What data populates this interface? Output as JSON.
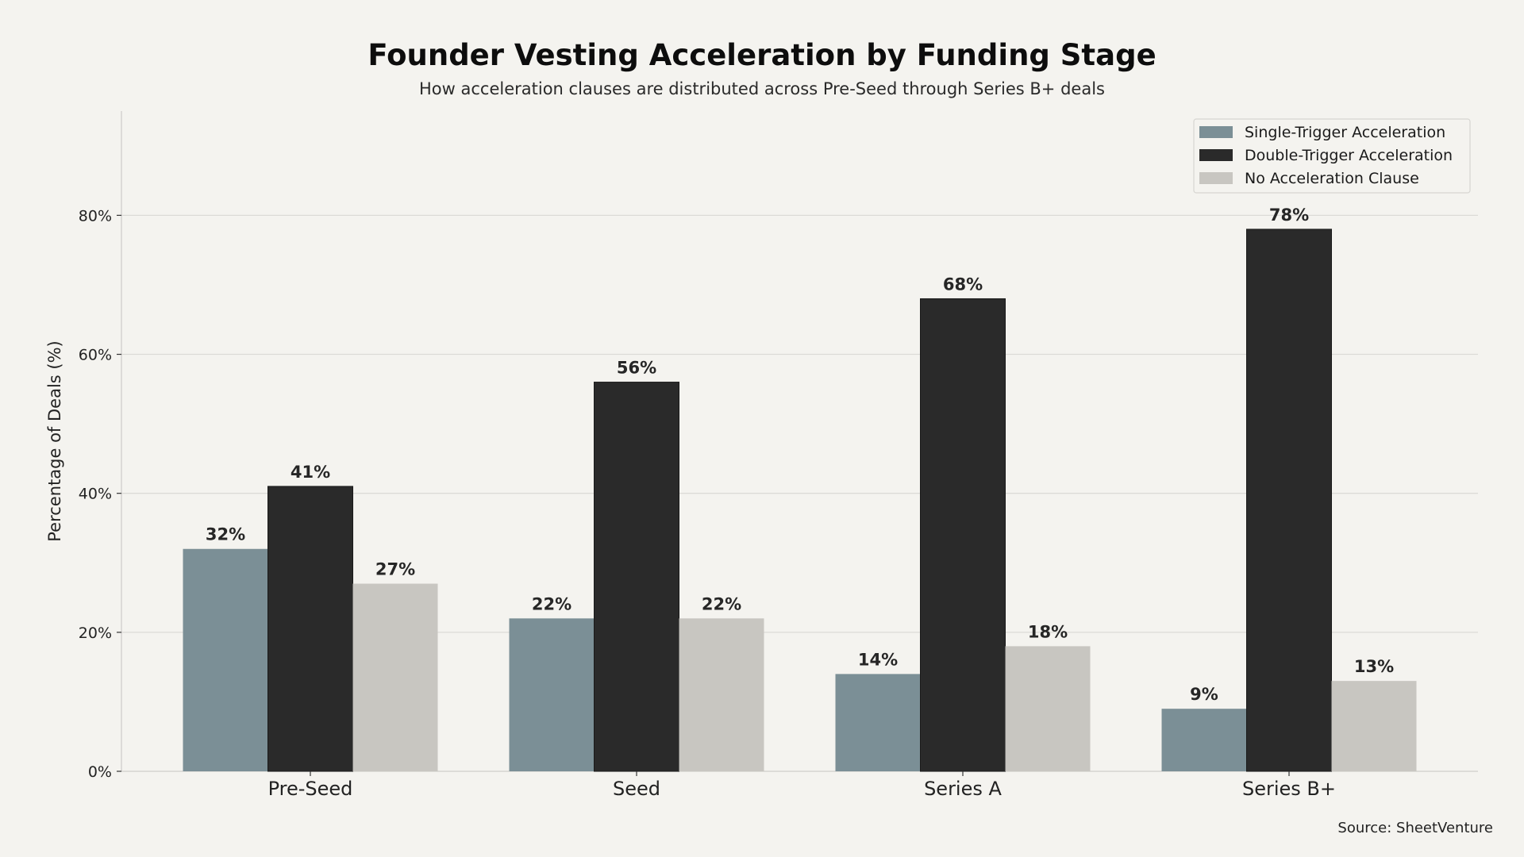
{
  "chart_data": {
    "type": "bar",
    "title": "Founder Vesting Acceleration by Funding Stage",
    "subtitle": "How acceleration clauses are distributed across Pre-Seed through Series B+ deals",
    "xlabel": "",
    "ylabel": "Percentage of Deals (%)",
    "ylim": [
      0,
      95
    ],
    "yticks": [
      0,
      20,
      40,
      60,
      80
    ],
    "ytick_labels": [
      "0%",
      "20%",
      "40%",
      "60%",
      "80%"
    ],
    "grid": "horizontal",
    "legend_position": "top-right",
    "categories": [
      "Pre-Seed",
      "Seed",
      "Series A",
      "Series B+"
    ],
    "series": [
      {
        "name": "Single-Trigger Acceleration",
        "color": "#7b8f96",
        "values": [
          32,
          22,
          14,
          9
        ],
        "labels": [
          "32%",
          "22%",
          "14%",
          "9%"
        ]
      },
      {
        "name": "Double-Trigger Acceleration",
        "color": "#2a2a2a",
        "values": [
          41,
          56,
          68,
          78
        ],
        "labels": [
          "41%",
          "56%",
          "68%",
          "78%"
        ]
      },
      {
        "name": "No Acceleration Clause",
        "color": "#c8c6c1",
        "values": [
          27,
          22,
          18,
          13
        ],
        "labels": [
          "27%",
          "22%",
          "18%",
          "13%"
        ]
      }
    ],
    "source": "Source: SheetVenture"
  },
  "colors": {
    "background": "#f4f3ef",
    "grid": "#dcdbd7",
    "axis": "#cfcecb"
  }
}
